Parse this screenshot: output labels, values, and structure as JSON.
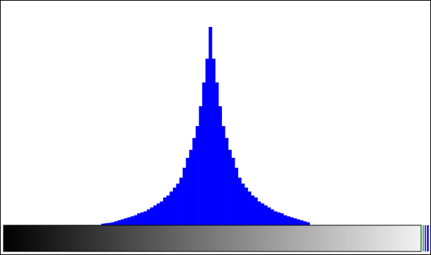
{
  "chart_data": {
    "type": "histogram",
    "bins": [
      60,
      62,
      64,
      66,
      68,
      70,
      72,
      74,
      76,
      78,
      80,
      82,
      84,
      86,
      88,
      90,
      92,
      94,
      96,
      98,
      100,
      102,
      104,
      106,
      108,
      110,
      112,
      114,
      116,
      118,
      120,
      122,
      124,
      126,
      128,
      130,
      132,
      134,
      136,
      138,
      140,
      142,
      144,
      146,
      148,
      150,
      152,
      154,
      156,
      158,
      160,
      162,
      164,
      166,
      168,
      170,
      172,
      174,
      176,
      178,
      180,
      182,
      184,
      186,
      188
    ],
    "values": [
      0.8,
      1,
      1.2,
      1.5,
      2,
      2.5,
      3,
      3.5,
      4,
      4.5,
      5,
      6,
      6.5,
      7,
      8,
      9,
      10,
      11,
      12,
      14,
      15,
      17,
      19,
      21,
      24,
      29,
      34,
      38,
      44,
      50,
      60,
      72,
      84,
      100,
      84,
      72,
      60,
      50,
      44,
      38,
      34,
      29,
      24,
      21,
      19,
      17,
      15,
      14,
      12,
      11,
      10,
      9,
      8,
      7,
      6.5,
      6,
      5,
      4.5,
      4,
      3.5,
      3,
      2.5,
      2,
      1.5
    ],
    "color": "#0000ff",
    "xlim": [
      0,
      256
    ],
    "ylim": [
      0,
      100
    ]
  }
}
